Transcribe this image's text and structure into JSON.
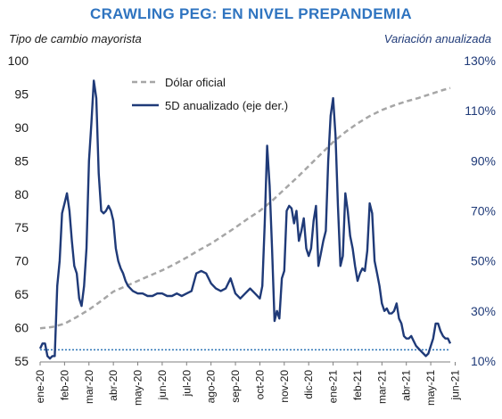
{
  "chart_data": {
    "type": "line",
    "title": "CRAWLING PEG: EN NIVEL PREPANDEMIA",
    "ylabel_left": "Tipo de cambio mayorista",
    "ylabel_right": "Variación anualizada",
    "ylim_left": [
      55,
      100
    ],
    "yticks_left": [
      "55",
      "60",
      "65",
      "70",
      "75",
      "80",
      "85",
      "90",
      "95",
      "100"
    ],
    "ylim_right": [
      10,
      130
    ],
    "yticks_right": [
      "10%",
      "30%",
      "50%",
      "70%",
      "90%",
      "110%",
      "130%"
    ],
    "xlim": [
      0,
      16.8
    ],
    "xticks": [
      "ene-20",
      "feb-20",
      "mar-20",
      "abr-20",
      "may-20",
      "jun-20",
      "jul-20",
      "ago-20",
      "sep-20",
      "oct-20",
      "nov-20",
      "dic-20",
      "ene-21",
      "feb-21",
      "mar-21",
      "abr-21",
      "may-21",
      "jun-21"
    ],
    "legend_position": "top",
    "reference_line": {
      "axis": "right",
      "value": 14.5,
      "style": "dotted"
    },
    "series": [
      {
        "name": "Dólar oficial",
        "axis": "left",
        "style": "dashed",
        "color": "#a6a6a6",
        "x": [
          0,
          0.5,
          1,
          1.5,
          2,
          2.5,
          3,
          3.5,
          4,
          4.5,
          5,
          5.5,
          6,
          6.5,
          7,
          7.5,
          8,
          8.5,
          9,
          9.5,
          10,
          10.5,
          11,
          11.5,
          12,
          12.5,
          13,
          13.5,
          14,
          14.5,
          15,
          15.5,
          16,
          16.5,
          16.8
        ],
        "values": [
          59.9,
          60.1,
          60.6,
          61.6,
          62.7,
          64.0,
          65.4,
          66.2,
          67.0,
          67.8,
          68.6,
          69.5,
          70.5,
          71.6,
          72.6,
          73.8,
          75.0,
          76.3,
          77.5,
          79.0,
          80.7,
          82.4,
          84.2,
          86.0,
          87.8,
          89.3,
          90.6,
          91.7,
          92.6,
          93.3,
          93.9,
          94.4,
          95.0,
          95.6,
          95.9
        ]
      },
      {
        "name": "5D anualizado (eje der.)",
        "axis": "right",
        "style": "solid",
        "color": "#1f3a78",
        "x": [
          0,
          0.1,
          0.2,
          0.3,
          0.4,
          0.5,
          0.6,
          0.7,
          0.8,
          0.9,
          1.0,
          1.1,
          1.2,
          1.3,
          1.4,
          1.5,
          1.6,
          1.7,
          1.8,
          1.9,
          2.0,
          2.1,
          2.2,
          2.3,
          2.4,
          2.5,
          2.6,
          2.7,
          2.8,
          2.9,
          3.0,
          3.1,
          3.2,
          3.3,
          3.4,
          3.5,
          3.6,
          3.8,
          4.0,
          4.2,
          4.4,
          4.6,
          4.8,
          5.0,
          5.2,
          5.4,
          5.6,
          5.8,
          6.0,
          6.2,
          6.4,
          6.6,
          6.8,
          7.0,
          7.2,
          7.4,
          7.6,
          7.8,
          8.0,
          8.2,
          8.4,
          8.6,
          8.8,
          9.0,
          9.1,
          9.2,
          9.3,
          9.4,
          9.5,
          9.6,
          9.7,
          9.8,
          9.9,
          10.0,
          10.1,
          10.2,
          10.3,
          10.4,
          10.5,
          10.6,
          10.7,
          10.8,
          10.9,
          11.0,
          11.1,
          11.2,
          11.3,
          11.4,
          11.5,
          11.6,
          11.7,
          11.8,
          11.9,
          12.0,
          12.1,
          12.2,
          12.3,
          12.4,
          12.5,
          12.6,
          12.7,
          12.8,
          12.9,
          13.0,
          13.1,
          13.2,
          13.3,
          13.4,
          13.5,
          13.6,
          13.7,
          13.8,
          13.9,
          14.0,
          14.1,
          14.2,
          14.3,
          14.4,
          14.5,
          14.6,
          14.7,
          14.8,
          14.9,
          15.0,
          15.1,
          15.2,
          15.3,
          15.4,
          15.5,
          15.6,
          15.7,
          15.8,
          15.9,
          16.0,
          16.1,
          16.2,
          16.3,
          16.4,
          16.5,
          16.6,
          16.7,
          16.8
        ],
        "values": [
          15,
          17,
          17,
          12,
          11,
          12,
          12,
          40,
          50,
          69,
          73,
          77,
          70,
          58,
          48,
          45,
          35,
          32,
          40,
          55,
          90,
          105,
          122,
          115,
          85,
          70,
          69,
          70,
          72,
          70,
          66,
          55,
          50,
          47,
          45,
          42,
          40,
          38,
          37,
          37,
          36,
          36,
          37,
          37,
          36,
          36,
          37,
          36,
          37,
          38,
          45,
          46,
          45,
          41,
          39,
          38,
          39,
          43,
          37,
          35,
          37,
          39,
          37,
          35,
          40,
          65,
          96,
          80,
          55,
          26,
          30,
          27,
          43,
          46,
          70,
          72,
          71,
          65,
          70,
          58,
          62,
          67,
          55,
          52,
          55,
          66,
          72,
          48,
          53,
          58,
          62,
          90,
          108,
          115,
          100,
          72,
          48,
          52,
          77,
          70,
          60,
          55,
          48,
          42,
          45,
          47,
          46,
          54,
          73,
          69,
          50,
          45,
          40,
          33,
          30,
          31,
          29,
          29,
          30,
          33,
          27,
          25,
          20,
          19,
          19,
          20,
          18,
          16,
          15,
          14,
          13,
          12,
          13,
          16,
          19,
          25,
          25,
          22,
          20,
          19,
          19,
          17
        ]
      }
    ]
  }
}
